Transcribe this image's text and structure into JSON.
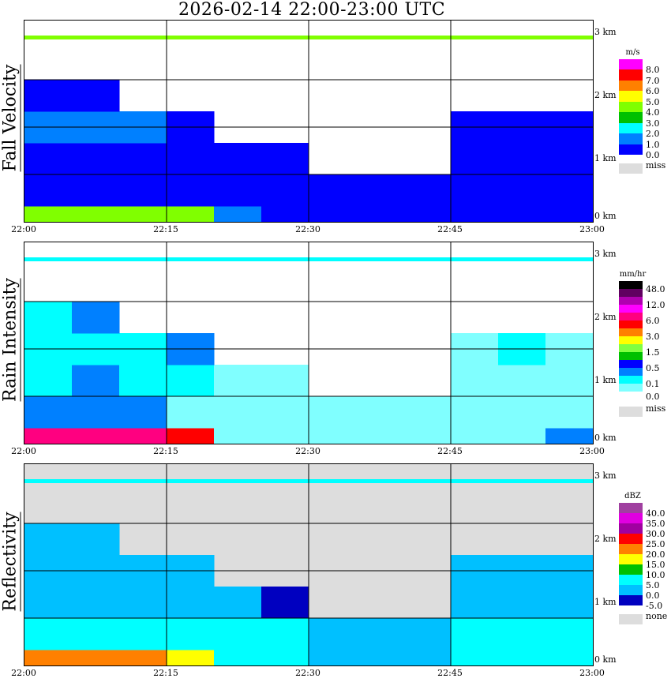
{
  "title": "2026-02-14  22:00-23:00 UTC",
  "x_ticks": [
    "22:00",
    "22:15",
    "22:30",
    "22:45",
    "23:00"
  ],
  "y_ticks": [
    "0 km",
    "1 km",
    "2 km",
    "3 km"
  ],
  "chart_data": {
    "type": "heatmap",
    "x_range": [
      "22:00",
      "23:00"
    ],
    "y_range_km": [
      0,
      3
    ],
    "time_bins": [
      "22:00",
      "22:05",
      "22:10",
      "22:15",
      "22:20",
      "22:25",
      "22:30",
      "22:35",
      "22:40",
      "22:45",
      "22:50",
      "22:55"
    ],
    "height_bins_km": [
      [
        0,
        0.25
      ],
      [
        0.25,
        0.75
      ],
      [
        0.75,
        1.25
      ],
      [
        1.25,
        1.75
      ],
      [
        1.75,
        2.25
      ]
    ],
    "panels": [
      {
        "name": "Fall Velocity",
        "unit": "m/s",
        "missing_label": "miss",
        "background": "#ffffff",
        "thresholds": [
          0,
          1,
          2,
          3,
          4,
          5,
          6,
          7,
          8
        ],
        "colors": [
          "#0000ff",
          "#0080ff",
          "#00ffff",
          "#00c000",
          "#80ff00",
          "#ffff00",
          "#ff8000",
          "#ff0000",
          "#ff00ff"
        ],
        "legend_labels": [
          "8.0",
          "7.0",
          "6.0",
          "5.0",
          "4.0",
          "3.0",
          "2.0",
          "1.0",
          "0.0"
        ],
        "values": [
          [
            4.5,
            4.5,
            4.2,
            4.0,
            1.5,
            0.5,
            0.5,
            0.5,
            0.5,
            0.5,
            0.5,
            0.5
          ],
          [
            0.5,
            0.5,
            0.5,
            0.5,
            0.5,
            0.5,
            0.8,
            0.8,
            0.8,
            0.8,
            0.8,
            0.8
          ],
          [
            0.5,
            0.5,
            0.5,
            0.5,
            0.5,
            0.5,
            null,
            null,
            null,
            0.5,
            0.5,
            0.5
          ],
          [
            1.5,
            1.5,
            1.5,
            0.5,
            null,
            null,
            null,
            null,
            null,
            0.5,
            0.5,
            0.5
          ],
          [
            0.5,
            0.5,
            null,
            null,
            null,
            null,
            null,
            null,
            null,
            null,
            null,
            null
          ]
        ],
        "clutter_line_value": 4.5
      },
      {
        "name": "Rain Intensity",
        "unit": "mm/hr",
        "missing_label": "miss",
        "background": "#ffffff",
        "thresholds": [
          0,
          0.1,
          0.2,
          0.5,
          1,
          1.5,
          2,
          3,
          4,
          6,
          8,
          12,
          24,
          48
        ],
        "colors": [
          "#80ffff",
          "#00ffff",
          "#0080ff",
          "#0000ff",
          "#00c000",
          "#80ff40",
          "#ffff00",
          "#ff8000",
          "#ff0000",
          "#ff0080",
          "#ff00ff",
          "#b000b0",
          "#600060",
          "#000000"
        ],
        "legend_labels": [
          "48.0",
          "12.0",
          "6.0",
          "3.0",
          "1.5",
          "0.5",
          "0.1",
          "0.0"
        ],
        "values": [
          [
            6,
            6,
            6,
            4,
            0.05,
            0.05,
            0.05,
            0.05,
            0.05,
            0.05,
            0.05,
            0.3
          ],
          [
            0.3,
            0.2,
            0.2,
            0.05,
            0.05,
            0.05,
            0.05,
            0.05,
            0.05,
            0.05,
            0.05,
            0.05
          ],
          [
            0.1,
            0.2,
            0.1,
            0.1,
            0.05,
            0.05,
            null,
            null,
            null,
            0.05,
            0.05,
            0.05
          ],
          [
            0.1,
            0.1,
            0.1,
            0.3,
            null,
            null,
            null,
            null,
            null,
            0.05,
            0.1,
            0.05
          ],
          [
            0.1,
            0.3,
            null,
            null,
            null,
            null,
            null,
            null,
            null,
            null,
            null,
            null
          ]
        ],
        "clutter_line_value": 0.1
      },
      {
        "name": "Reflectivity",
        "unit": "dBZ",
        "missing_label": "none",
        "background": "#dddddd",
        "thresholds": [
          -5,
          0,
          5,
          10,
          15,
          20,
          25,
          30,
          35,
          40
        ],
        "colors": [
          "#0000c0",
          "#00c0ff",
          "#00ffff",
          "#00c000",
          "#ffff00",
          "#ff8000",
          "#ff0000",
          "#a000a0",
          "#e000e0",
          "#a040a0"
        ],
        "legend_labels": [
          "40.0",
          "35.0",
          "30.0",
          "25.0",
          "20.0",
          "15.0",
          "10.0",
          "5.0",
          "0.0",
          "-5.0"
        ],
        "values": [
          [
            22,
            22,
            24,
            17,
            6,
            6,
            2,
            2,
            2,
            6,
            6,
            6
          ],
          [
            7,
            7,
            7,
            7,
            6,
            6,
            2,
            2,
            2,
            6,
            6,
            6
          ],
          [
            4,
            4,
            4,
            4,
            2,
            -2,
            null,
            null,
            null,
            4,
            4,
            4
          ],
          [
            4,
            4,
            4,
            2,
            null,
            null,
            null,
            null,
            null,
            2,
            2,
            2
          ],
          [
            2,
            2,
            null,
            null,
            null,
            null,
            null,
            null,
            null,
            null,
            null,
            null
          ]
        ],
        "clutter_line_value": 6
      }
    ]
  }
}
